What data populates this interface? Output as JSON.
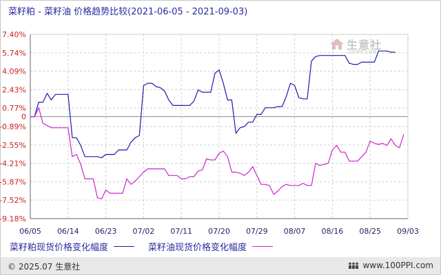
{
  "title": "菜籽粕 - 菜籽油 价格趋势比较(2021-06-05 - 2021-09-03)",
  "watermark": {
    "text": "生意社",
    "sub": "100PPI.COM"
  },
  "footer": {
    "copyright": "© 2025.07 生意社",
    "site": "www.100PPI.com",
    "site_icon": "people-icon"
  },
  "colors": {
    "series1": "#1a1aa8",
    "series2": "#cc22cc",
    "grid": "#cfcfcf",
    "axis_label_y": "#cc2222",
    "axis_label_x": "#222266"
  },
  "chart_data": {
    "type": "line",
    "x_ticks": [
      "06/05",
      "06/14",
      "06/23",
      "07/02",
      "07/11",
      "07/20",
      "07/29",
      "08/07",
      "08/16",
      "08/25",
      "09/03"
    ],
    "y_ticks": [
      "7.40%",
      "5.74%",
      "4.09%",
      "2.43%",
      "0.77%",
      "0",
      "-0.89%",
      "-2.55%",
      "-4.21%",
      "-5.87%",
      "-7.52%",
      "-9.18%"
    ],
    "ylim": [
      -9.18,
      7.4
    ],
    "xlim": [
      0,
      90
    ],
    "grid": true,
    "legend_position": "bottom",
    "series": [
      {
        "name": "菜籽粕现货价格变化幅度",
        "points": [
          [
            0,
            0
          ],
          [
            1,
            0
          ],
          [
            2,
            1.3
          ],
          [
            3,
            1.3
          ],
          [
            4,
            2.1
          ],
          [
            5,
            1.5
          ],
          [
            6,
            2.0
          ],
          [
            7,
            2.0
          ],
          [
            8,
            2.0
          ],
          [
            9,
            2.0
          ],
          [
            10,
            -1.9
          ],
          [
            11,
            -1.9
          ],
          [
            12,
            -2.6
          ],
          [
            13,
            -3.6
          ],
          [
            14,
            -3.6
          ],
          [
            15,
            -3.6
          ],
          [
            16,
            -3.6
          ],
          [
            17,
            -3.7
          ],
          [
            18,
            -3.4
          ],
          [
            19,
            -3.4
          ],
          [
            20,
            -3.4
          ],
          [
            21,
            -3.0
          ],
          [
            22,
            -3.0
          ],
          [
            23,
            -3.0
          ],
          [
            24,
            -2.3
          ],
          [
            25,
            -1.9
          ],
          [
            26,
            -1.7
          ],
          [
            27,
            2.8
          ],
          [
            28,
            3.0
          ],
          [
            29,
            3.0
          ],
          [
            30,
            2.7
          ],
          [
            31,
            2.6
          ],
          [
            32,
            2.3
          ],
          [
            33,
            1.5
          ],
          [
            34,
            1.0
          ],
          [
            35,
            1.0
          ],
          [
            36,
            1.0
          ],
          [
            37,
            1.0
          ],
          [
            38,
            1.0
          ],
          [
            39,
            1.4
          ],
          [
            40,
            2.4
          ],
          [
            41,
            2.2
          ],
          [
            42,
            2.2
          ],
          [
            43,
            2.2
          ],
          [
            44,
            3.9
          ],
          [
            45,
            4.2
          ],
          [
            46,
            3.0
          ],
          [
            47,
            1.5
          ],
          [
            48,
            1.5
          ],
          [
            49,
            -1.5
          ],
          [
            50,
            -1.0
          ],
          [
            51,
            -0.9
          ],
          [
            52,
            -0.5
          ],
          [
            53,
            -0.5
          ],
          [
            54,
            0.2
          ],
          [
            55,
            0.2
          ],
          [
            56,
            0.8
          ],
          [
            57,
            0.8
          ],
          [
            58,
            0.8
          ],
          [
            59,
            0.9
          ],
          [
            60,
            0.9
          ],
          [
            61,
            1.8
          ],
          [
            62,
            3.0
          ],
          [
            63,
            2.8
          ],
          [
            64,
            1.7
          ],
          [
            65,
            1.6
          ],
          [
            66,
            1.6
          ],
          [
            67,
            5.0
          ],
          [
            68,
            5.4
          ],
          [
            69,
            5.5
          ],
          [
            70,
            5.5
          ],
          [
            71,
            5.5
          ],
          [
            72,
            5.5
          ],
          [
            73,
            5.5
          ],
          [
            74,
            5.5
          ],
          [
            75,
            5.5
          ],
          [
            76,
            4.8
          ],
          [
            77,
            4.7
          ],
          [
            78,
            4.7
          ],
          [
            79,
            4.9
          ],
          [
            80,
            4.9
          ],
          [
            81,
            4.9
          ],
          [
            82,
            4.9
          ],
          [
            83,
            5.9
          ],
          [
            84,
            5.9
          ],
          [
            85,
            5.9
          ],
          [
            86,
            5.8
          ],
          [
            87,
            5.8
          ]
        ]
      },
      {
        "name": "菜籽油现货价格变化幅度",
        "points": [
          [
            0,
            0
          ],
          [
            1,
            0
          ],
          [
            2,
            0.8
          ],
          [
            3,
            -0.6
          ],
          [
            4,
            -0.8
          ],
          [
            5,
            -1.0
          ],
          [
            6,
            -1.0
          ],
          [
            7,
            -1.0
          ],
          [
            8,
            -1.0
          ],
          [
            9,
            -1.0
          ],
          [
            10,
            -3.6
          ],
          [
            11,
            -3.4
          ],
          [
            12,
            -4.3
          ],
          [
            13,
            -5.6
          ],
          [
            14,
            -5.6
          ],
          [
            15,
            -5.6
          ],
          [
            16,
            -7.3
          ],
          [
            17,
            -7.4
          ],
          [
            18,
            -6.6
          ],
          [
            19,
            -6.9
          ],
          [
            20,
            -6.9
          ],
          [
            21,
            -6.9
          ],
          [
            22,
            -6.9
          ],
          [
            23,
            -5.6
          ],
          [
            24,
            -6.1
          ],
          [
            25,
            -5.8
          ],
          [
            26,
            -5.4
          ],
          [
            27,
            -5.0
          ],
          [
            28,
            -4.7
          ],
          [
            29,
            -4.7
          ],
          [
            30,
            -4.7
          ],
          [
            31,
            -4.7
          ],
          [
            32,
            -4.7
          ],
          [
            33,
            -5.3
          ],
          [
            34,
            -5.3
          ],
          [
            35,
            -5.3
          ],
          [
            36,
            -5.6
          ],
          [
            37,
            -5.6
          ],
          [
            38,
            -5.4
          ],
          [
            39,
            -5.4
          ],
          [
            40,
            -4.9
          ],
          [
            41,
            -4.8
          ],
          [
            42,
            -3.8
          ],
          [
            43,
            -3.9
          ],
          [
            44,
            -3.9
          ],
          [
            45,
            -3.3
          ],
          [
            46,
            -3.1
          ],
          [
            47,
            -3.6
          ],
          [
            48,
            -5.0
          ],
          [
            49,
            -5.0
          ],
          [
            50,
            -5.1
          ],
          [
            51,
            -5.3
          ],
          [
            52,
            -5.0
          ],
          [
            53,
            -4.5
          ],
          [
            54,
            -5.3
          ],
          [
            55,
            -6.1
          ],
          [
            56,
            -6.1
          ],
          [
            57,
            -6.2
          ],
          [
            58,
            -7.0
          ],
          [
            59,
            -6.7
          ],
          [
            60,
            -6.3
          ],
          [
            61,
            -6.1
          ],
          [
            62,
            -6.2
          ],
          [
            63,
            -6.2
          ],
          [
            64,
            -6.2
          ],
          [
            65,
            -6.0
          ],
          [
            66,
            -6.2
          ],
          [
            67,
            -6.2
          ],
          [
            68,
            -4.2
          ],
          [
            69,
            -4.4
          ],
          [
            70,
            -4.3
          ],
          [
            71,
            -4.2
          ],
          [
            72,
            -3.0
          ],
          [
            73,
            -2.6
          ],
          [
            74,
            -3.2
          ],
          [
            75,
            -3.2
          ],
          [
            76,
            -4.0
          ],
          [
            77,
            -4.0
          ],
          [
            78,
            -4.0
          ],
          [
            79,
            -3.6
          ],
          [
            80,
            -3.2
          ],
          [
            81,
            -2.2
          ],
          [
            82,
            -2.4
          ],
          [
            83,
            -2.5
          ],
          [
            84,
            -2.4
          ],
          [
            85,
            -2.6
          ],
          [
            86,
            -2.0
          ],
          [
            87,
            -2.6
          ],
          [
            88,
            -2.8
          ],
          [
            89,
            -1.6
          ]
        ]
      }
    ]
  }
}
